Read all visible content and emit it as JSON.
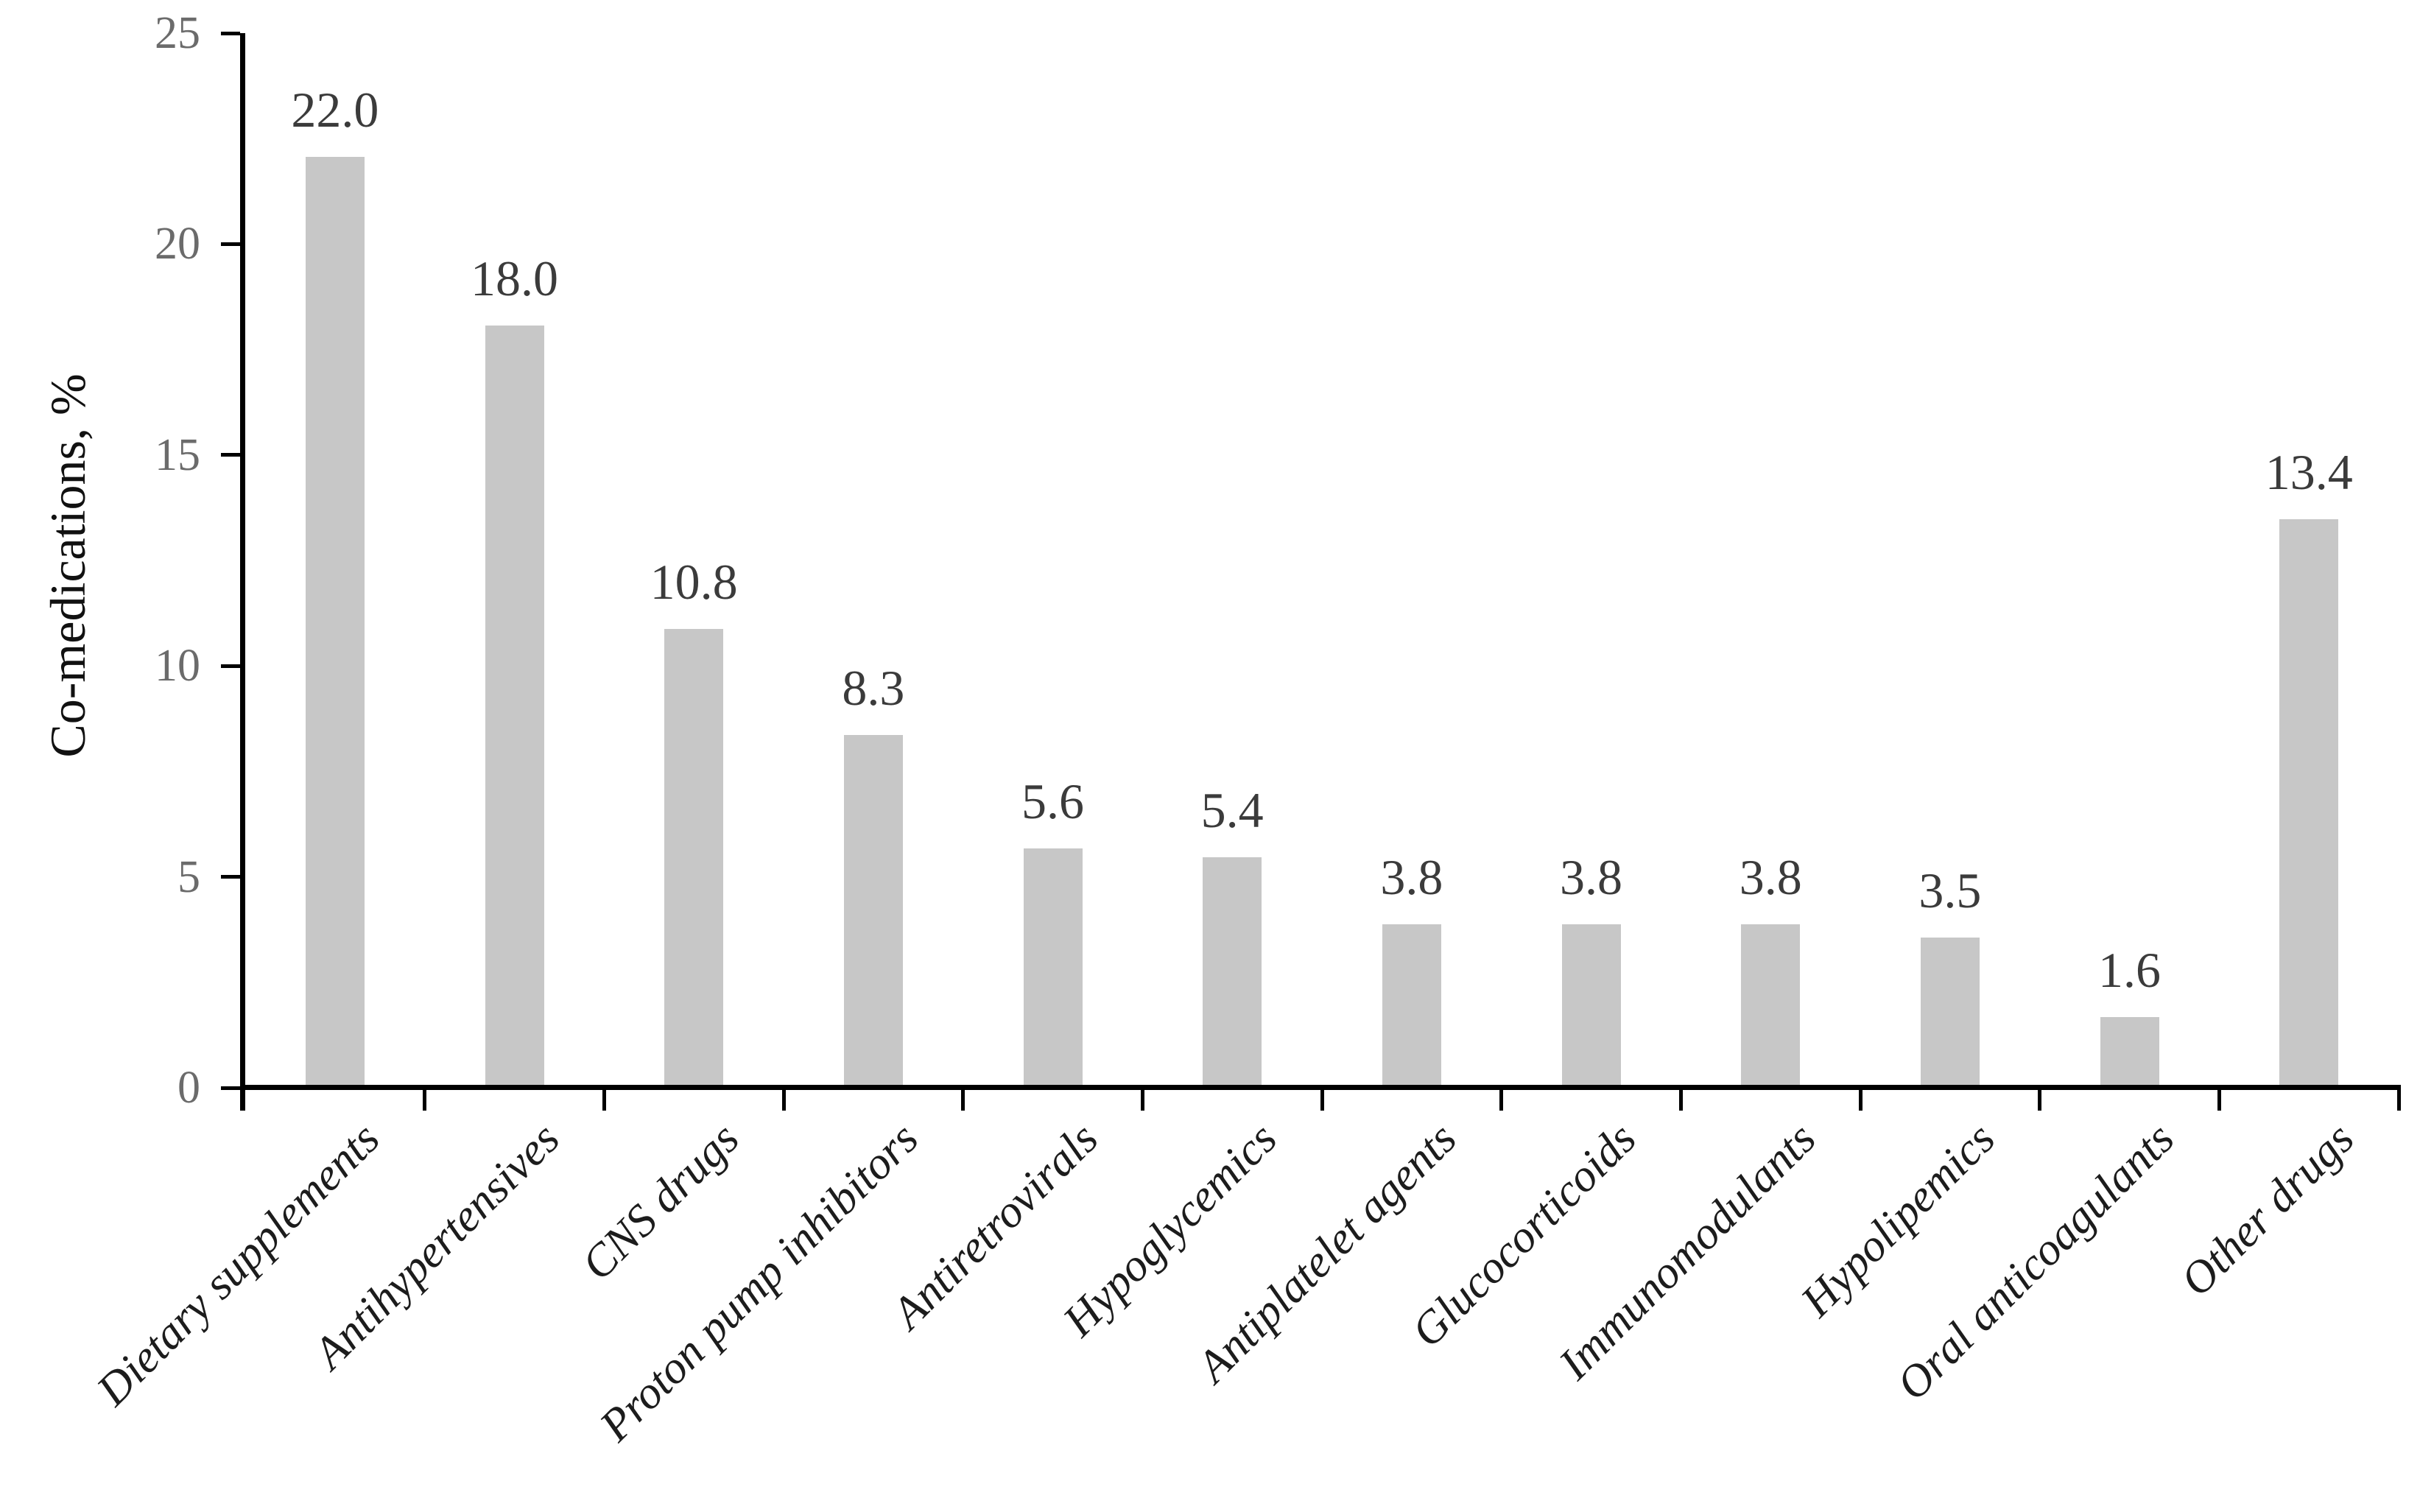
{
  "chart_data": {
    "type": "bar",
    "title": "",
    "ylabel": "Co-medications, %",
    "xlabel": "",
    "ylim": [
      0,
      25
    ],
    "yticks": [
      0,
      5,
      10,
      15,
      20,
      25
    ],
    "grid": false,
    "legend_position": "none",
    "bar_color": "#c7c7c7",
    "axis_color": "#000000",
    "ytick_label_color": "#6b6b6b",
    "value_label_color": "#3b3b3b",
    "category_label_color": "#1c1c1c",
    "categories": [
      "Dietary supplements",
      "Antihypertensives",
      "CNS drugs",
      "Proton pump inhibitors",
      "Antiretrovirals",
      "Hypoglycemics",
      "Antiplatelet agents",
      "Glucocorticoids",
      "Immunomodulants",
      "Hypolipemics",
      "Oral anticoagulants",
      "Other drugs"
    ],
    "values": [
      22.0,
      18.0,
      10.8,
      8.3,
      5.6,
      5.4,
      3.8,
      3.8,
      3.8,
      3.5,
      1.6,
      13.4
    ],
    "value_labels": [
      "22.0",
      "18.0",
      "10.8",
      "8.3",
      "5.6",
      "5.4",
      "3.8",
      "3.8",
      "3.8",
      "3.5",
      "1.6",
      "13.4"
    ]
  }
}
